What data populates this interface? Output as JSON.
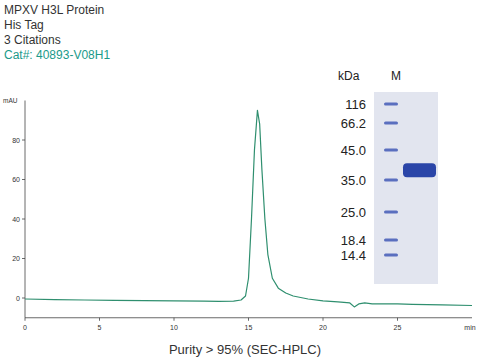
{
  "header": {
    "title": "MPXV H3L Protein",
    "tag": "His Tag",
    "citations": "3 Citations",
    "catalog": "Cat#: 40893-V08H1"
  },
  "chart_data": {
    "type": "line",
    "x_label": "min",
    "y_label": "mAU",
    "caption": "Purity > 95% (SEC-HPLC)",
    "x": [
      0,
      2,
      4,
      6,
      8,
      10,
      12,
      13,
      14,
      14.5,
      14.8,
      15.0,
      15.2,
      15.4,
      15.6,
      15.75,
      15.9,
      16.1,
      16.3,
      16.6,
      17.0,
      17.5,
      18,
      19,
      20,
      21,
      21.8,
      22.1,
      22.4,
      22.8,
      23.3,
      24,
      25,
      26,
      28,
      30
    ],
    "values": [
      -0.5,
      -0.8,
      -1,
      -1.2,
      -1.3,
      -1.5,
      -1.6,
      -1.7,
      -1.6,
      -1,
      1,
      10,
      40,
      75,
      95,
      88,
      65,
      40,
      22,
      10,
      5,
      2.5,
      1,
      -0.5,
      -1.5,
      -2,
      -2.5,
      -4.5,
      -3,
      -2.5,
      -3,
      -3,
      -3,
      -3.2,
      -3.5,
      -3.8
    ],
    "color": "#2f8f6f",
    "xlim": [
      0,
      30
    ],
    "xticks": [
      0,
      5,
      10,
      15,
      20,
      25
    ],
    "ylim": [
      -10,
      100
    ],
    "yticks": [
      0,
      20,
      40,
      60,
      80
    ],
    "grid": false
  },
  "gel": {
    "unit_label": "kDa",
    "lane_label": "M",
    "markers": [
      {
        "value": 116,
        "label": "116"
      },
      {
        "value": 66.2,
        "label": "66.2"
      },
      {
        "value": 45,
        "label": "45.0"
      },
      {
        "value": 35,
        "label": "35.0"
      },
      {
        "value": 25,
        "label": "25.0"
      },
      {
        "value": 18.4,
        "label": "18.4"
      },
      {
        "value": 14.4,
        "label": "14.4"
      }
    ],
    "band_kda": 38
  }
}
